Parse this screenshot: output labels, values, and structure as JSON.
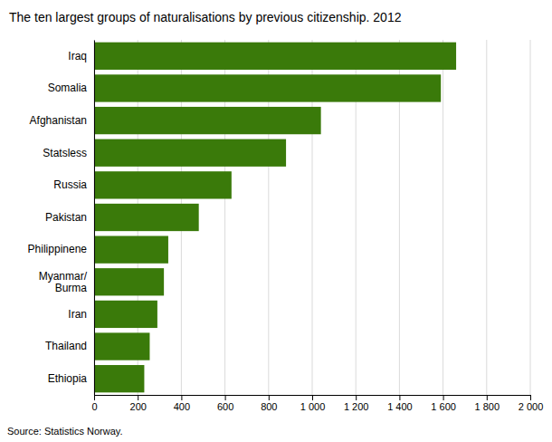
{
  "chart_data": {
    "type": "bar",
    "orientation": "horizontal",
    "title": "The ten largest groups of naturalisations by previous citizenship. 2012",
    "categories": [
      "Iraq",
      "Somalia",
      "Afghanistan",
      "Statsless",
      "Russia",
      "Pakistan",
      "Philippinene",
      "Myanmar/\nBurma",
      "Iran",
      "Thailand",
      "Ethiopia"
    ],
    "values": [
      1660,
      1590,
      1040,
      880,
      630,
      480,
      340,
      320,
      290,
      255,
      230
    ],
    "color": "#3a7a0a",
    "xlim": [
      0,
      2000
    ],
    "xticks": [
      0,
      200,
      400,
      600,
      800,
      {
        "value": 1000,
        "label": "1 000"
      },
      {
        "value": 1200,
        "label": "1 200"
      },
      {
        "value": 1400,
        "label": "1 400"
      },
      {
        "value": 1600,
        "label": "1 600"
      },
      {
        "value": 1800,
        "label": "1 800"
      },
      {
        "value": 2000,
        "label": "2 000"
      }
    ],
    "grid": true,
    "annotations": [
      "Source: Statistics Norway."
    ]
  }
}
